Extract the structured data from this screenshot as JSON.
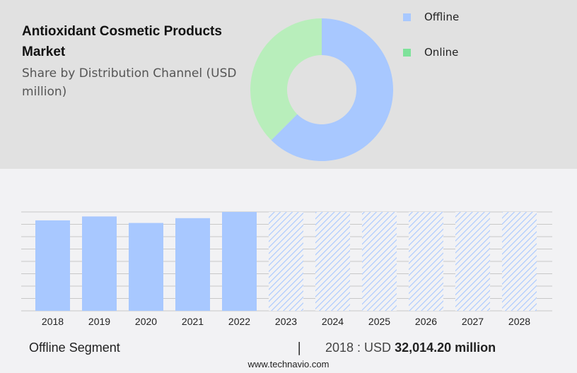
{
  "header": {
    "title": "Antioxidant Cosmetic Products Market",
    "subtitle": "Share by Distribution Channel (USD million)"
  },
  "legend": [
    {
      "label": "Offline",
      "color": "#a8c8ff"
    },
    {
      "label": "Online",
      "color": "#7ee29a"
    }
  ],
  "footer": {
    "segment": "Offline Segment",
    "separator": "|",
    "year_label": "2018 : USD",
    "value": "32,014.20 million",
    "source": "www.technavio.com"
  },
  "chart_data": [
    {
      "type": "pie",
      "subtype": "donut",
      "title": "Antioxidant Cosmetic Products Market - Share by Distribution Channel (USD million)",
      "labels": [
        "Offline",
        "Online"
      ],
      "values": [
        62.5,
        37.5
      ],
      "colors": [
        "#a8c8ff",
        "#b8eebb"
      ],
      "legend_position": "right"
    },
    {
      "type": "bar",
      "title": "Offline Segment",
      "categories": [
        "2018",
        "2019",
        "2020",
        "2021",
        "2022",
        "2023",
        "2024",
        "2025",
        "2026",
        "2027",
        "2028"
      ],
      "series": [
        {
          "name": "Offline (historic)",
          "values": [
            32014.2,
            33400,
            31100,
            32800,
            35000,
            null,
            null,
            null,
            null,
            null,
            null
          ]
        },
        {
          "name": "Offline (forecast, hatched)",
          "values": [
            null,
            null,
            null,
            null,
            null,
            35000,
            35000,
            35000,
            35000,
            35000,
            35000
          ]
        }
      ],
      "xlabel": "",
      "ylabel": "",
      "ylim": [
        0,
        40000
      ],
      "grid": true,
      "annotation": "2018 : USD 32,014.20 million"
    }
  ]
}
